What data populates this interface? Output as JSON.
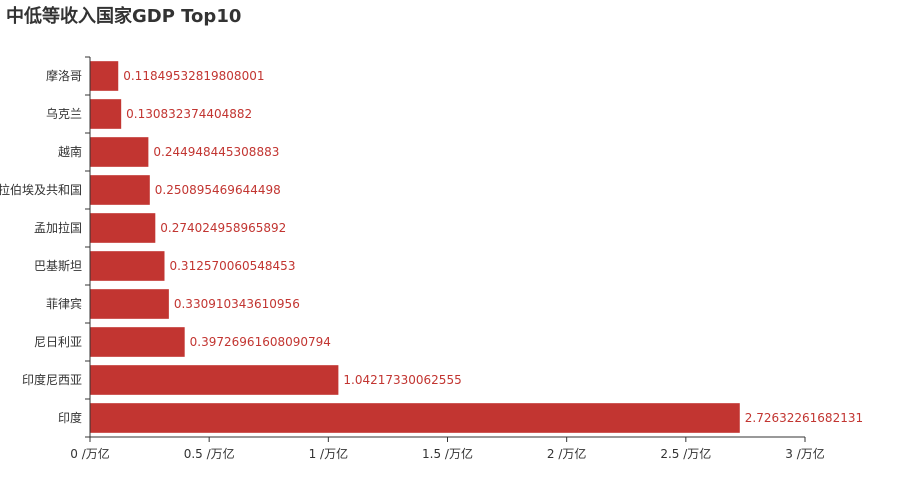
{
  "chart_data": {
    "type": "bar",
    "orientation": "horizontal",
    "title": "中低等收入国家GDP Top10",
    "xlabel": "",
    "ylabel": "",
    "xlim": [
      0,
      3
    ],
    "x_ticks": [
      0,
      0.5,
      1,
      1.5,
      2,
      2.5,
      3
    ],
    "x_tick_labels": [
      "0 /万亿",
      "0.5 /万亿",
      "1 /万亿",
      "1.5 /万亿",
      "2 /万亿",
      "2.5 /万亿",
      "3 /万亿"
    ],
    "grid": false,
    "categories": [
      "摩洛哥",
      "乌克兰",
      "越南",
      "阿拉伯埃及共和国",
      "孟加拉国",
      "巴基斯坦",
      "菲律宾",
      "尼日利亚",
      "印度尼西亚",
      "印度"
    ],
    "values": [
      0.11849532819808001,
      0.130832374404882,
      0.244948445308883,
      0.250895469644498,
      0.274024958965892,
      0.312570060548453,
      0.330910343610956,
      0.39726961608090794,
      1.04217330062555,
      2.72632261682131
    ],
    "value_labels": [
      "0.11849532819808001",
      "0.130832374404882",
      "0.244948445308883",
      "0.250895469644498",
      "0.274024958965892",
      "0.312570060548453",
      "0.330910343610956",
      "0.39726961608090794",
      "1.04217330062555",
      "2.72632261682131"
    ],
    "colors": {
      "bar": "#c23531",
      "label": "#c23531",
      "axis": "#333333"
    }
  }
}
